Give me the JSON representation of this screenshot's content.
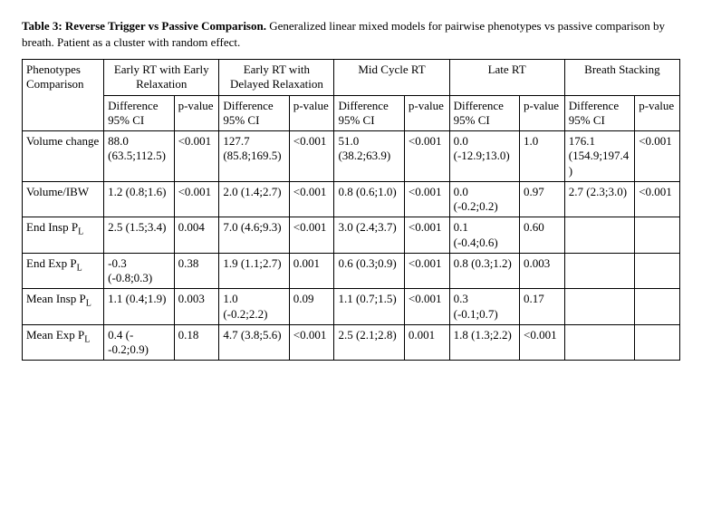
{
  "caption": {
    "title": "Table 3: Reverse Trigger vs Passive Comparison.",
    "rest": " Generalized linear mixed models for pairwise phenotypes vs passive comparison by breath. Patient as a cluster with random effect."
  },
  "headers": {
    "row_label": "Phenotypes Comparison",
    "groups": [
      "Early RT with Early Relaxation",
      "Early RT with Delayed Relaxation",
      "Mid Cycle RT",
      "Late RT",
      "Breath Stacking"
    ],
    "sub_diff": "Difference 95% CI",
    "sub_p": "p-value"
  },
  "rows": [
    {
      "label": "Volume change",
      "cells": [
        {
          "diff": "88.0 (63.5;112.5)",
          "p": "<0.001"
        },
        {
          "diff": "127.7 (85.8;169.5)",
          "p": "<0.001"
        },
        {
          "diff": "51.0 (38.2;63.9)",
          "p": "<0.001"
        },
        {
          "diff": "0.0 (-12.9;13.0)",
          "p": "1.0"
        },
        {
          "diff": "176.1 (154.9;197.4)",
          "p": "<0.001"
        }
      ]
    },
    {
      "label": "Volume/IBW",
      "cells": [
        {
          "diff": "1.2 (0.8;1.6)",
          "p": "<0.001"
        },
        {
          "diff": "2.0 (1.4;2.7)",
          "p": "<0.001"
        },
        {
          "diff": "0.8 (0.6;1.0)",
          "p": "<0.001"
        },
        {
          "diff": "0.0 (-0.2;0.2)",
          "p": "0.97"
        },
        {
          "diff": "2.7 (2.3;3.0)",
          "p": "<0.001"
        }
      ]
    },
    {
      "label_html": "End Insp P<span class=\"sub\">L</span>",
      "cells": [
        {
          "diff": "2.5 (1.5;3.4)",
          "p": "0.004"
        },
        {
          "diff": "7.0 (4.6;9.3)",
          "p": "<0.001"
        },
        {
          "diff": "3.0 (2.4;3.7)",
          "p": "<0.001"
        },
        {
          "diff": "0.1 (-0.4;0.6)",
          "p": "0.60"
        },
        {
          "diff": "",
          "p": ""
        }
      ]
    },
    {
      "label_html": "End Exp P<span class=\"sub\">L</span>",
      "cells": [
        {
          "diff": "-0.3 (-0.8;0.3)",
          "p": "0.38"
        },
        {
          "diff": "1.9 (1.1;2.7)",
          "p": "0.001"
        },
        {
          "diff": "0.6 (0.3;0.9)",
          "p": "<0.001"
        },
        {
          "diff": "0.8 (0.3;1.2)",
          "p": "0.003"
        },
        {
          "diff": "",
          "p": ""
        }
      ]
    },
    {
      "label_html": "Mean Insp P<span class=\"sub\">L</span>",
      "cells": [
        {
          "diff": "1.1 (0.4;1.9)",
          "p": "0.003"
        },
        {
          "diff": "1.0 (-0.2;2.2)",
          "p": "0.09"
        },
        {
          "diff": "1.1 (0.7;1.5)",
          "p": "<0.001"
        },
        {
          "diff": "0.3 (-0.1;0.7)",
          "p": "0.17"
        },
        {
          "diff": "",
          "p": ""
        }
      ]
    },
    {
      "label_html": "Mean Exp P<span class=\"sub\">L</span>",
      "cells": [
        {
          "diff": "0.4 (--0.2;0.9)",
          "p": "0.18"
        },
        {
          "diff": "4.7 (3.8;5.6)",
          "p": "<0.001"
        },
        {
          "diff": "2.5 (2.1;2.8)",
          "p": "0.001"
        },
        {
          "diff": "1.8 (1.3;2.2)",
          "p": "<0.001"
        },
        {
          "diff": "",
          "p": ""
        }
      ]
    }
  ]
}
